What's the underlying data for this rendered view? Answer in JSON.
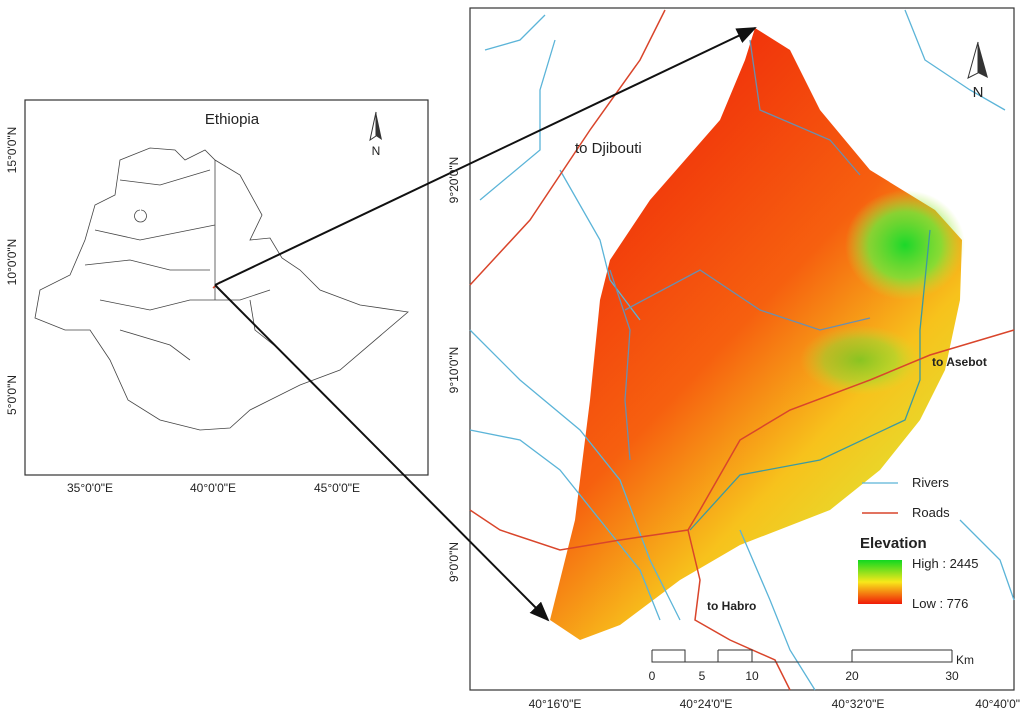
{
  "inset": {
    "title": "Ethiopia",
    "north": "N",
    "y_labels": [
      "15°0'0\"N",
      "10°0'0\"N",
      "5°0'0\"N"
    ],
    "x_labels": [
      "35°0'0\"E",
      "40°0'0\"E",
      "45°0'0\"E"
    ]
  },
  "main": {
    "north": "N",
    "y_labels": [
      "9°20'0\"N",
      "9°10'0\"N",
      "9°0'0\"N"
    ],
    "x_labels": [
      "40°16'0\"E",
      "40°24'0\"E",
      "40°32'0\"E",
      "40°40'0\""
    ],
    "places": [
      "to Djibouti",
      "to Asebot",
      "to Habro"
    ],
    "legend": {
      "rivers": "Rivers",
      "roads": "Roads",
      "elevation": "Elevation",
      "high": "High : 2445",
      "low": "Low : 776"
    },
    "scale": {
      "ticks": [
        "0",
        "5",
        "10",
        "20",
        "30"
      ],
      "unit": "Km"
    }
  }
}
